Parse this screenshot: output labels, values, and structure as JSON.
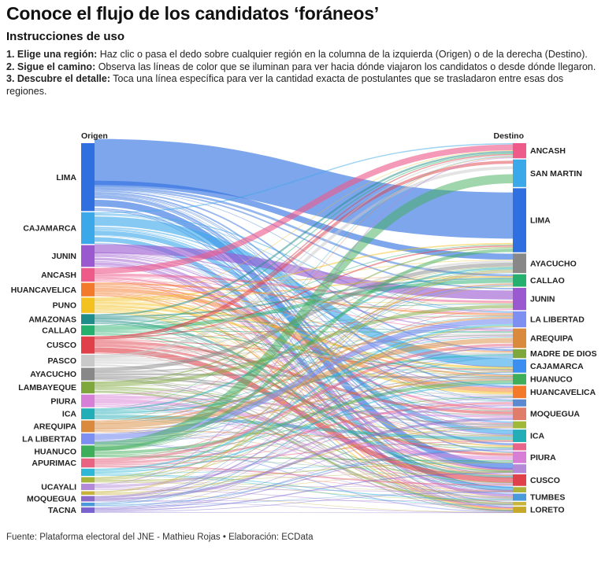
{
  "title": "Conoce el flujo de los candidatos ‘foráneos’",
  "subtitle": "Instrucciones de uso",
  "instructions": [
    {
      "step": "1. Elige una región:",
      "text": " Haz clic o pasa el dedo sobre cualquier región en la columna de la izquierda (Origen) o de la derecha (Destino)."
    },
    {
      "step": "2. Sigue el camino:",
      "text": " Observa las líneas de color que se iluminan para ver hacia dónde viajaron los candidatos o desde dónde llegaron."
    },
    {
      "step": "3. Descubre el detalle:",
      "text": " Toca una línea específica para ver la cantidad exacta de postulantes que se trasladaron entre esas dos regiones."
    }
  ],
  "footer": "Fuente: Plataforma electoral del JNE - Mathieu Rojas • Elaboración: ECData",
  "chart_data": {
    "type": "sankey",
    "left_header": "Origen",
    "right_header": "Destino",
    "sources": [
      {
        "name": "LIMA",
        "weight": 75,
        "color": "#2f6fe0",
        "labeled": true
      },
      {
        "name": "CAJAMARCA",
        "weight": 35,
        "color": "#3ba8ea",
        "labeled": true
      },
      {
        "name": "JUNIN",
        "weight": 24,
        "color": "#9b59d0",
        "labeled": true
      },
      {
        "name": "ANCASH",
        "weight": 15,
        "color": "#ee5a8a",
        "labeled": true
      },
      {
        "name": "HUANCAVELICA",
        "weight": 15,
        "color": "#f37a2a",
        "labeled": true
      },
      {
        "name": "PUNO",
        "weight": 17,
        "color": "#f4c21f",
        "labeled": true
      },
      {
        "name": "AMAZONAS",
        "weight": 11,
        "color": "#1f8e8a",
        "labeled": true
      },
      {
        "name": "CALLAO",
        "weight": 11,
        "color": "#26b06d",
        "labeled": true
      },
      {
        "name": "CUSCO",
        "weight": 19,
        "color": "#e0404a",
        "labeled": true
      },
      {
        "name": "PASCO",
        "weight": 13,
        "color": "#c9c9c9",
        "labeled": true
      },
      {
        "name": "AYACUCHO",
        "weight": 14,
        "color": "#888888",
        "labeled": true
      },
      {
        "name": "LAMBAYEQUE",
        "weight": 13,
        "color": "#7ea83c",
        "labeled": true
      },
      {
        "name": "PIURA",
        "weight": 14,
        "color": "#d77ed6",
        "labeled": true
      },
      {
        "name": "ICA",
        "weight": 12,
        "color": "#22aeb6",
        "labeled": true
      },
      {
        "name": "AREQUIPA",
        "weight": 13,
        "color": "#d98a3c",
        "labeled": true
      },
      {
        "name": "LA LIBERTAD",
        "weight": 12,
        "color": "#7d8ff0",
        "labeled": true
      },
      {
        "name": "HUANUCO",
        "weight": 13,
        "color": "#3fae5a",
        "labeled": true
      },
      {
        "name": "APURIMAC",
        "weight": 10,
        "color": "#e86480",
        "labeled": true
      },
      {
        "name": "",
        "weight": 8,
        "color": "#2fb8d6",
        "labeled": false
      },
      {
        "name": "",
        "weight": 6,
        "color": "#a7b43a",
        "labeled": false
      },
      {
        "name": "UCAYALI",
        "weight": 7,
        "color": "#b48ad8",
        "labeled": true
      },
      {
        "name": "",
        "weight": 4,
        "color": "#c7b23a",
        "labeled": false
      },
      {
        "name": "MOQUEGUA",
        "weight": 6,
        "color": "#8a6ac8",
        "labeled": true
      },
      {
        "name": "",
        "weight": 4,
        "color": "#4a9adb",
        "labeled": false
      },
      {
        "name": "TACNA",
        "weight": 6,
        "color": "#7a62d0",
        "labeled": true
      }
    ],
    "targets": [
      {
        "name": "ANCASH",
        "weight": 17,
        "color": "#ee5a8a",
        "labeled": true
      },
      {
        "name": "SAN MARTIN",
        "weight": 31,
        "color": "#3ba8ea",
        "labeled": true
      },
      {
        "name": "LIMA",
        "weight": 72,
        "color": "#2f6fe0",
        "labeled": true
      },
      {
        "name": "AYACUCHO",
        "weight": 22,
        "color": "#888888",
        "labeled": true
      },
      {
        "name": "CALLAO",
        "weight": 14,
        "color": "#26b06d",
        "labeled": true
      },
      {
        "name": "JUNIN",
        "weight": 25,
        "color": "#9b59d0",
        "labeled": true
      },
      {
        "name": "LA LIBERTAD",
        "weight": 18,
        "color": "#7d8ff0",
        "labeled": true
      },
      {
        "name": "AREQUIPA",
        "weight": 22,
        "color": "#d98a3c",
        "labeled": true
      },
      {
        "name": "MADRE DE DIOS",
        "weight": 10,
        "color": "#7ea83c",
        "labeled": true
      },
      {
        "name": "CAJAMARCA",
        "weight": 15,
        "color": "#3b8ff0",
        "labeled": true
      },
      {
        "name": "HUANUCO",
        "weight": 12,
        "color": "#3fae5a",
        "labeled": true
      },
      {
        "name": "HUANCAVELICA",
        "weight": 14,
        "color": "#f37a2a",
        "labeled": true
      },
      {
        "name": "",
        "weight": 8,
        "color": "#5b8ad0",
        "labeled": false
      },
      {
        "name": "MOQUEGUA",
        "weight": 14,
        "color": "#e07c6a",
        "labeled": true
      },
      {
        "name": "",
        "weight": 8,
        "color": "#a0b838",
        "labeled": false
      },
      {
        "name": "ICA",
        "weight": 14,
        "color": "#22aeb6",
        "labeled": true
      },
      {
        "name": "",
        "weight": 8,
        "color": "#e8648a",
        "labeled": false
      },
      {
        "name": "PIURA",
        "weight": 13,
        "color": "#d77ed6",
        "labeled": true
      },
      {
        "name": "",
        "weight": 10,
        "color": "#b48ad8",
        "labeled": false
      },
      {
        "name": "CUSCO",
        "weight": 13,
        "color": "#e0404a",
        "labeled": true
      },
      {
        "name": "",
        "weight": 6,
        "color": "#aeb43a",
        "labeled": false
      },
      {
        "name": "TUMBES",
        "weight": 8,
        "color": "#4a9adb",
        "labeled": true
      },
      {
        "name": "",
        "weight": 4,
        "color": "#c9b43a",
        "labeled": false
      },
      {
        "name": "LORETO",
        "weight": 7,
        "color": "#c7a92a",
        "labeled": true
      }
    ]
  }
}
